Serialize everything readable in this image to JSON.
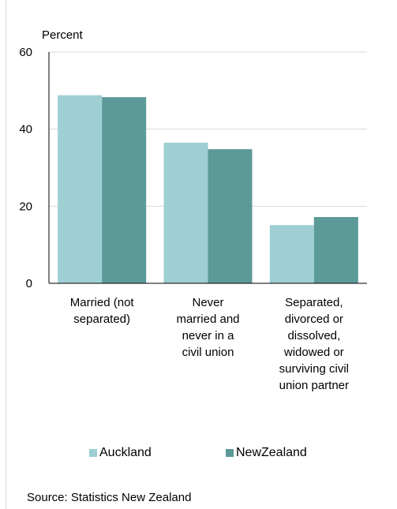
{
  "chart_data": {
    "type": "bar",
    "ylabel": "Percent",
    "ylim": [
      0,
      60
    ],
    "yticks": [
      0,
      20,
      40,
      60
    ],
    "categories": [
      [
        "Married (not",
        "separated)"
      ],
      [
        "Never",
        "married and",
        "never in a",
        "civil union"
      ],
      [
        "Separated,",
        "divorced or",
        "dissolved,",
        "widowed or",
        "surviving civil",
        "union partner"
      ]
    ],
    "series": [
      {
        "name": "Auckland",
        "color": "#9ecfd2",
        "values": [
          48.8,
          36.5,
          15.1
        ]
      },
      {
        "name": "NewZealand",
        "color": "#5c9a98",
        "values": [
          48.3,
          34.8,
          17.2
        ]
      }
    ],
    "grid": true,
    "legend_position": "bottom"
  },
  "source": "Source: Statistics New Zealand"
}
